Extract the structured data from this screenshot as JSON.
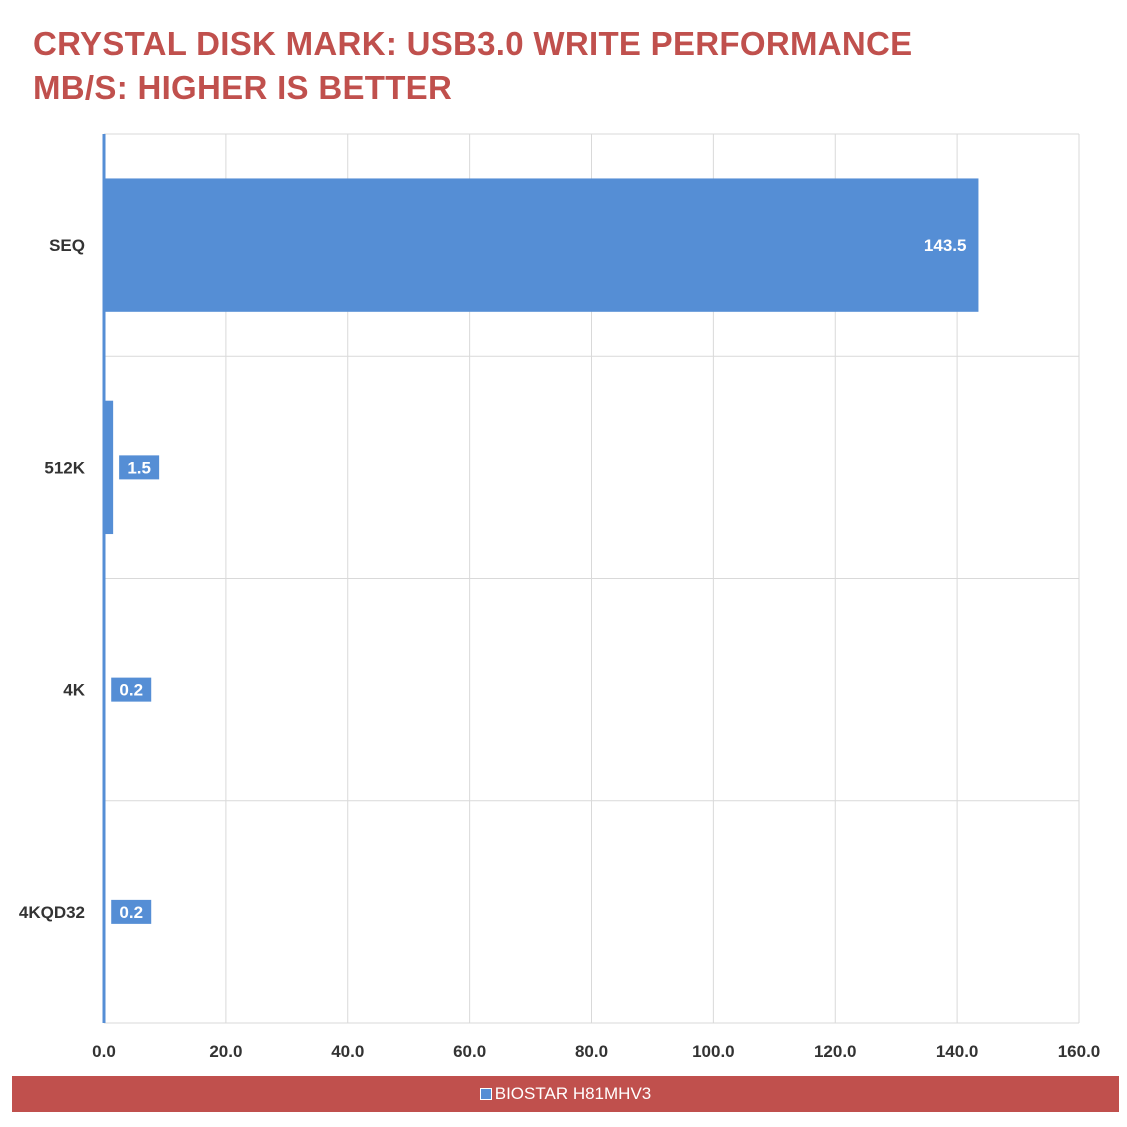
{
  "title_lines": [
    "CRYSTAL DISK MARK: USB3.0 WRITE PERFORMANCE",
    "MB/S: HIGHER IS BETTER"
  ],
  "colors": {
    "title": "#c0504d",
    "bar": "#558ed5",
    "legend_background": "#c0504d",
    "grid": "#d9d9d9",
    "axis": "#558ed5"
  },
  "chart_data": {
    "type": "bar",
    "orientation": "horizontal",
    "categories": [
      "SEQ",
      "512K",
      "4K",
      "4KQD32"
    ],
    "series": [
      {
        "name": "BIOSTAR H81MHV3",
        "values": [
          143.5,
          1.5,
          0.2,
          0.2
        ]
      }
    ],
    "data_labels": [
      "143.5",
      "1.5",
      "0.2",
      "0.2"
    ],
    "x_ticks": [
      "0.0",
      "20.0",
      "40.0",
      "60.0",
      "80.0",
      "100.0",
      "120.0",
      "140.0",
      "160.0"
    ],
    "xlim": [
      0,
      160
    ],
    "grid": true,
    "legend_position": "bottom"
  },
  "legend": {
    "label": "BIOSTAR H81MHV3"
  }
}
